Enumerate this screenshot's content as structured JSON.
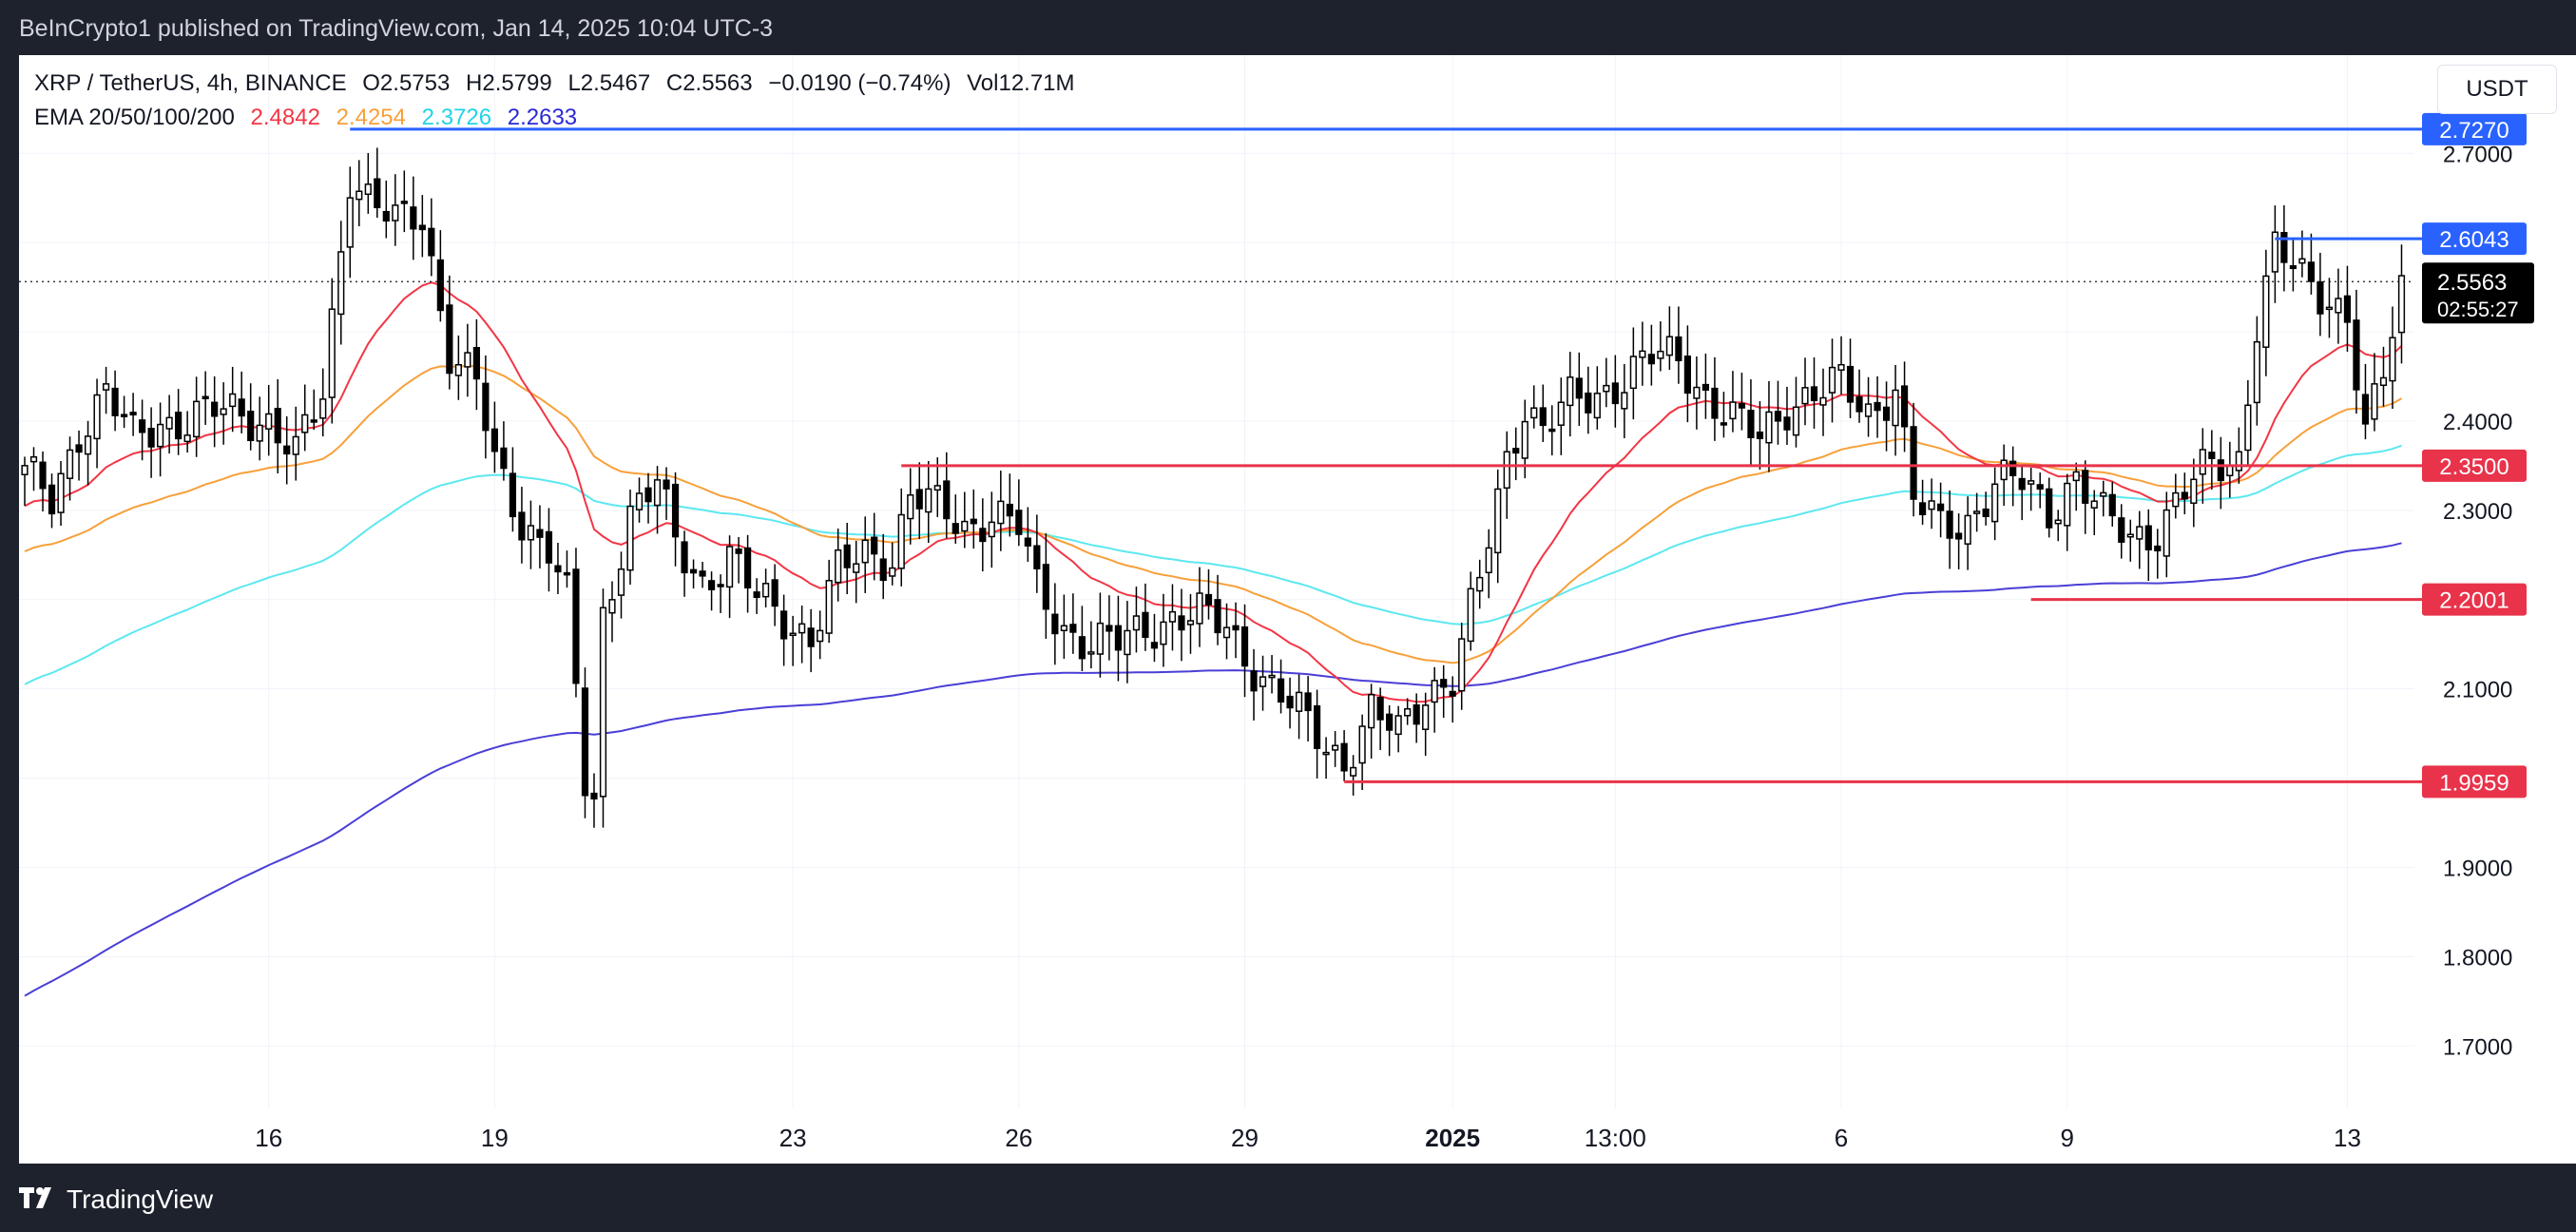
{
  "header": {
    "published_by": "BeInCrypto1 published on TradingView.com, Jan 14, 2025 10:04 UTC-3"
  },
  "legend": {
    "symbol": "XRP / TetherUS, 4h, BINANCE",
    "open": "O2.5753",
    "high": "H2.5799",
    "low": "L2.5467",
    "close": "C2.5563",
    "change": "−0.0190 (−0.74%)",
    "volume": "Vol12.71M",
    "ema_label": "EMA 20/50/100/200",
    "ema20": "2.4842",
    "ema50": "2.4254",
    "ema100": "2.3726",
    "ema200": "2.2633"
  },
  "currency_button": "USDT",
  "footer": {
    "brand": "TradingView"
  },
  "colors": {
    "ema20": "#f23645",
    "ema50": "#f7a03a",
    "ema100": "#5de8f0",
    "ema200": "#4a3fd6",
    "support": "#e8334a",
    "resistance": "#2962ff",
    "candle_up": "#ffffff",
    "candle_down": "#000000"
  },
  "chart_data": {
    "type": "candlestick",
    "title": "",
    "y_axis": {
      "ticks": [
        1.7,
        1.8,
        1.9,
        2.0,
        2.1,
        2.2,
        2.3,
        2.4,
        2.5,
        2.6,
        2.7
      ],
      "tick_labels": [
        "1.7000",
        "1.8000",
        "1.9000",
        "",
        "2.1000",
        "",
        "2.3000",
        "2.4000",
        "",
        "",
        "2.7000"
      ],
      "ylim": [
        1.63,
        2.81
      ]
    },
    "x_axis": {
      "tick_labels": [
        "16",
        "19",
        "23",
        "26",
        "29",
        "2025",
        "13:00",
        "6",
        "9",
        "13"
      ],
      "tick_bold": [
        false,
        false,
        false,
        false,
        false,
        true,
        false,
        false,
        false,
        false
      ],
      "tick_index": [
        27,
        52,
        85,
        110,
        135,
        158,
        176,
        201,
        226,
        257
      ]
    },
    "current_price": {
      "value": 2.5563,
      "label": "2.5563",
      "countdown": "02:55:27"
    },
    "levels": [
      {
        "value": 2.727,
        "label": "2.7270",
        "type": "resistance",
        "start_index": 36
      },
      {
        "value": 2.6043,
        "label": "2.6043",
        "type": "resistance",
        "start_index": 249
      },
      {
        "value": 2.35,
        "label": "2.3500",
        "type": "support",
        "start_index": 97
      },
      {
        "value": 2.2001,
        "label": "2.2001",
        "type": "support",
        "start_index": 222
      },
      {
        "value": 1.9959,
        "label": "1.9959",
        "type": "support",
        "start_index": 146
      }
    ],
    "anchors": [
      [
        0,
        2.34
      ],
      [
        3,
        2.31
      ],
      [
        6,
        2.39
      ],
      [
        9,
        2.43
      ],
      [
        12,
        2.38
      ],
      [
        15,
        2.4
      ],
      [
        18,
        2.4
      ],
      [
        21,
        2.41
      ],
      [
        24,
        2.41
      ],
      [
        27,
        2.4
      ],
      [
        30,
        2.36
      ],
      [
        33,
        2.43
      ],
      [
        36,
        2.68
      ],
      [
        38,
        2.65
      ],
      [
        41,
        2.62
      ],
      [
        44,
        2.63
      ],
      [
        47,
        2.48
      ],
      [
        50,
        2.44
      ],
      [
        52,
        2.35
      ],
      [
        55,
        2.29
      ],
      [
        58,
        2.26
      ],
      [
        60,
        2.2
      ],
      [
        62,
        1.99
      ],
      [
        63,
        1.97
      ],
      [
        64,
        2.18
      ],
      [
        67,
        2.3
      ],
      [
        70,
        2.33
      ],
      [
        72,
        2.26
      ],
      [
        75,
        2.22
      ],
      [
        78,
        2.25
      ],
      [
        81,
        2.2
      ],
      [
        84,
        2.18
      ],
      [
        87,
        2.16
      ],
      [
        90,
        2.23
      ],
      [
        93,
        2.25
      ],
      [
        96,
        2.25
      ],
      [
        98,
        2.32
      ],
      [
        101,
        2.3
      ],
      [
        104,
        2.28
      ],
      [
        107,
        2.3
      ],
      [
        110,
        2.28
      ],
      [
        112,
        2.21
      ],
      [
        115,
        2.17
      ],
      [
        118,
        2.15
      ],
      [
        121,
        2.15
      ],
      [
        124,
        2.17
      ],
      [
        127,
        2.18
      ],
      [
        130,
        2.18
      ],
      [
        133,
        2.17
      ],
      [
        135,
        2.14
      ],
      [
        138,
        2.1
      ],
      [
        141,
        2.07
      ],
      [
        144,
        2.04
      ],
      [
        146,
        2.02
      ],
      [
        149,
        2.07
      ],
      [
        152,
        2.05
      ],
      [
        155,
        2.1
      ],
      [
        158,
        2.11
      ],
      [
        161,
        2.22
      ],
      [
        164,
        2.36
      ],
      [
        166,
        2.42
      ],
      [
        168,
        2.39
      ],
      [
        171,
        2.42
      ],
      [
        174,
        2.43
      ],
      [
        177,
        2.45
      ],
      [
        180,
        2.47
      ],
      [
        183,
        2.47
      ],
      [
        186,
        2.43
      ],
      [
        189,
        2.4
      ],
      [
        192,
        2.38
      ],
      [
        195,
        2.42
      ],
      [
        198,
        2.43
      ],
      [
        201,
        2.44
      ],
      [
        204,
        2.41
      ],
      [
        207,
        2.44
      ],
      [
        209,
        2.31
      ],
      [
        212,
        2.28
      ],
      [
        215,
        2.29
      ],
      [
        218,
        2.33
      ],
      [
        221,
        2.33
      ],
      [
        224,
        2.3
      ],
      [
        227,
        2.34
      ],
      [
        230,
        2.29
      ],
      [
        233,
        2.27
      ],
      [
        236,
        2.28
      ],
      [
        239,
        2.32
      ],
      [
        242,
        2.35
      ],
      [
        245,
        2.36
      ],
      [
        247,
        2.51
      ],
      [
        249,
        2.59
      ],
      [
        252,
        2.56
      ],
      [
        255,
        2.54
      ],
      [
        257,
        2.52
      ],
      [
        259,
        2.38
      ],
      [
        261,
        2.45
      ],
      [
        263,
        2.55
      ]
    ],
    "ema_final": {
      "ema20": 2.4842,
      "ema50": 2.4254,
      "ema100": 2.3726,
      "ema200": 2.2633
    }
  }
}
